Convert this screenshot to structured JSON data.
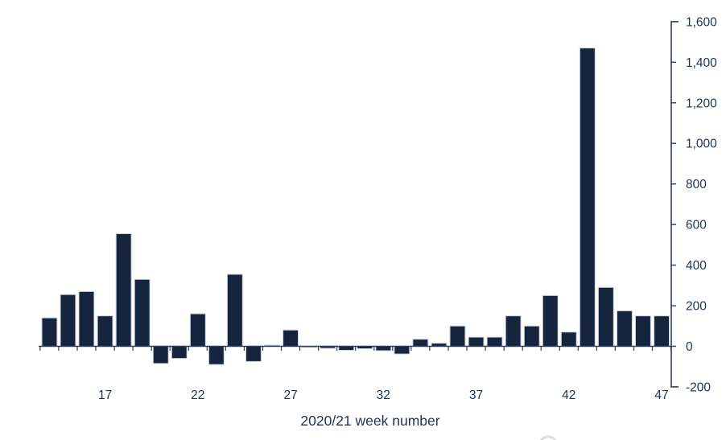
{
  "chart_data": {
    "type": "bar",
    "title": "",
    "xlabel": "2020/21 week number",
    "ylabel": "",
    "x": [
      14,
      15,
      16,
      17,
      18,
      19,
      20,
      21,
      22,
      23,
      24,
      25,
      26,
      27,
      28,
      29,
      30,
      31,
      32,
      33,
      34,
      35,
      36,
      37,
      38,
      39,
      40,
      41,
      42,
      43,
      44,
      45,
      46,
      47
    ],
    "values": [
      140,
      255,
      270,
      150,
      555,
      330,
      -85,
      -60,
      160,
      -90,
      355,
      -75,
      5,
      80,
      -5,
      -10,
      -20,
      -12,
      -22,
      -38,
      35,
      15,
      100,
      45,
      45,
      150,
      100,
      250,
      70,
      1470,
      290,
      175,
      150,
      150
    ],
    "x_tick_labels": [
      "17",
      "22",
      "27",
      "32",
      "37",
      "42",
      "47"
    ],
    "x_tick_weeks": [
      17,
      22,
      27,
      32,
      37,
      42,
      47
    ],
    "y_ticks": [
      -200,
      0,
      200,
      400,
      600,
      800,
      1000,
      1200,
      1400,
      1600
    ],
    "ylim": [
      -200,
      1600
    ],
    "y_axis_position": "right",
    "grid": false,
    "legend": null,
    "colors": {
      "bar_fill": "#16243E",
      "bar_outline": "#C9D2DE",
      "axis": "#2E3E5C",
      "tick_label": "#1E3457",
      "axis_title": "#1E3457",
      "watermark": "#DCDCDC"
    }
  }
}
